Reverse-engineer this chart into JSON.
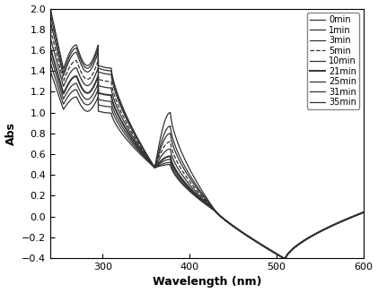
{
  "title": "",
  "xlabel": "Wavelength (nm)",
  "ylabel": "Abs",
  "xlim": [
    240,
    600
  ],
  "ylim": [
    -0.4,
    2.0
  ],
  "yticks": [
    -0.4,
    -0.2,
    0.0,
    0.2,
    0.4,
    0.6,
    0.8,
    1.0,
    1.2,
    1.4,
    1.6,
    1.8,
    2.0
  ],
  "xticks": [
    300,
    400,
    500,
    600
  ],
  "series": [
    {
      "label": "0min",
      "ls": "-",
      "lw": 0.9,
      "peak1": 1.65,
      "peak2": 1.0,
      "val240": 2.0,
      "val255": 1.42
    },
    {
      "label": "1min",
      "ls": "-",
      "lw": 0.9,
      "peak1": 1.62,
      "peak2": 0.87,
      "val240": 1.95,
      "val255": 1.38
    },
    {
      "label": "3min",
      "ls": "-",
      "lw": 0.9,
      "peak1": 1.58,
      "peak2": 0.8,
      "val240": 1.88,
      "val255": 1.35
    },
    {
      "label": "5min",
      "ls": "--",
      "lw": 0.9,
      "peak1": 1.5,
      "peak2": 0.72,
      "val240": 1.8,
      "val255": 1.3
    },
    {
      "label": "10min",
      "ls": "-",
      "lw": 0.9,
      "peak1": 1.43,
      "peak2": 0.65,
      "val240": 1.72,
      "val255": 1.25
    },
    {
      "label": "21min",
      "ls": "-",
      "lw": 1.4,
      "peak1": 1.35,
      "peak2": 0.58,
      "val240": 1.62,
      "val255": 1.18
    },
    {
      "label": "25min",
      "ls": "-",
      "lw": 0.9,
      "peak1": 1.28,
      "peak2": 0.55,
      "val240": 1.55,
      "val255": 1.13
    },
    {
      "label": "31min",
      "ls": "-",
      "lw": 0.9,
      "peak1": 1.22,
      "peak2": 0.52,
      "val240": 1.48,
      "val255": 1.08
    },
    {
      "label": "35min",
      "ls": "-",
      "lw": 0.9,
      "peak1": 1.15,
      "peak2": 0.5,
      "val240": 1.4,
      "val255": 1.03
    }
  ],
  "background_color": "#ffffff",
  "legend_fontsize": 7.0,
  "axis_fontsize": 9,
  "tick_fontsize": 8
}
